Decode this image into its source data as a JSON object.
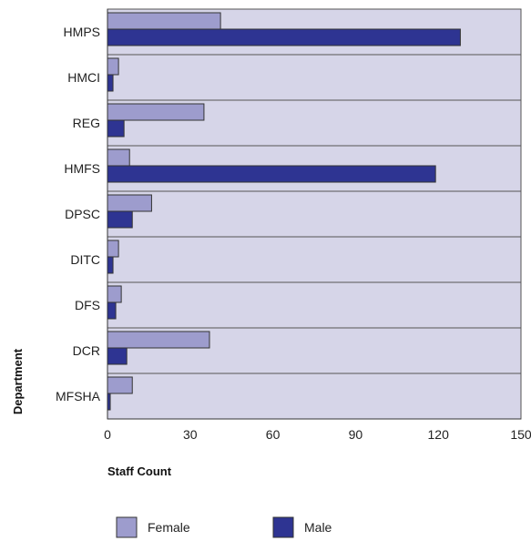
{
  "chart_data": {
    "type": "bar",
    "orientation": "horizontal",
    "categories": [
      "HMPS",
      "HMCI",
      "REG",
      "HMFS",
      "DPSC",
      "DITC",
      "DFS",
      "DCR",
      "MFSHA"
    ],
    "series": [
      {
        "name": "Female",
        "color": "#9d9ccd",
        "values": [
          41,
          4,
          35,
          8,
          16,
          4,
          5,
          37,
          9
        ]
      },
      {
        "name": "Male",
        "color": "#2e3492",
        "values": [
          128,
          2,
          6,
          119,
          9,
          2,
          3,
          7,
          1
        ]
      }
    ],
    "xlabel": "Staff Count",
    "ylabel": "Department",
    "xlim": [
      0,
      150
    ],
    "xticks": [
      0,
      30,
      60,
      90,
      120,
      150
    ],
    "grid": true,
    "plot_background": "#d6d5e8",
    "legend_placement": "bottom"
  }
}
